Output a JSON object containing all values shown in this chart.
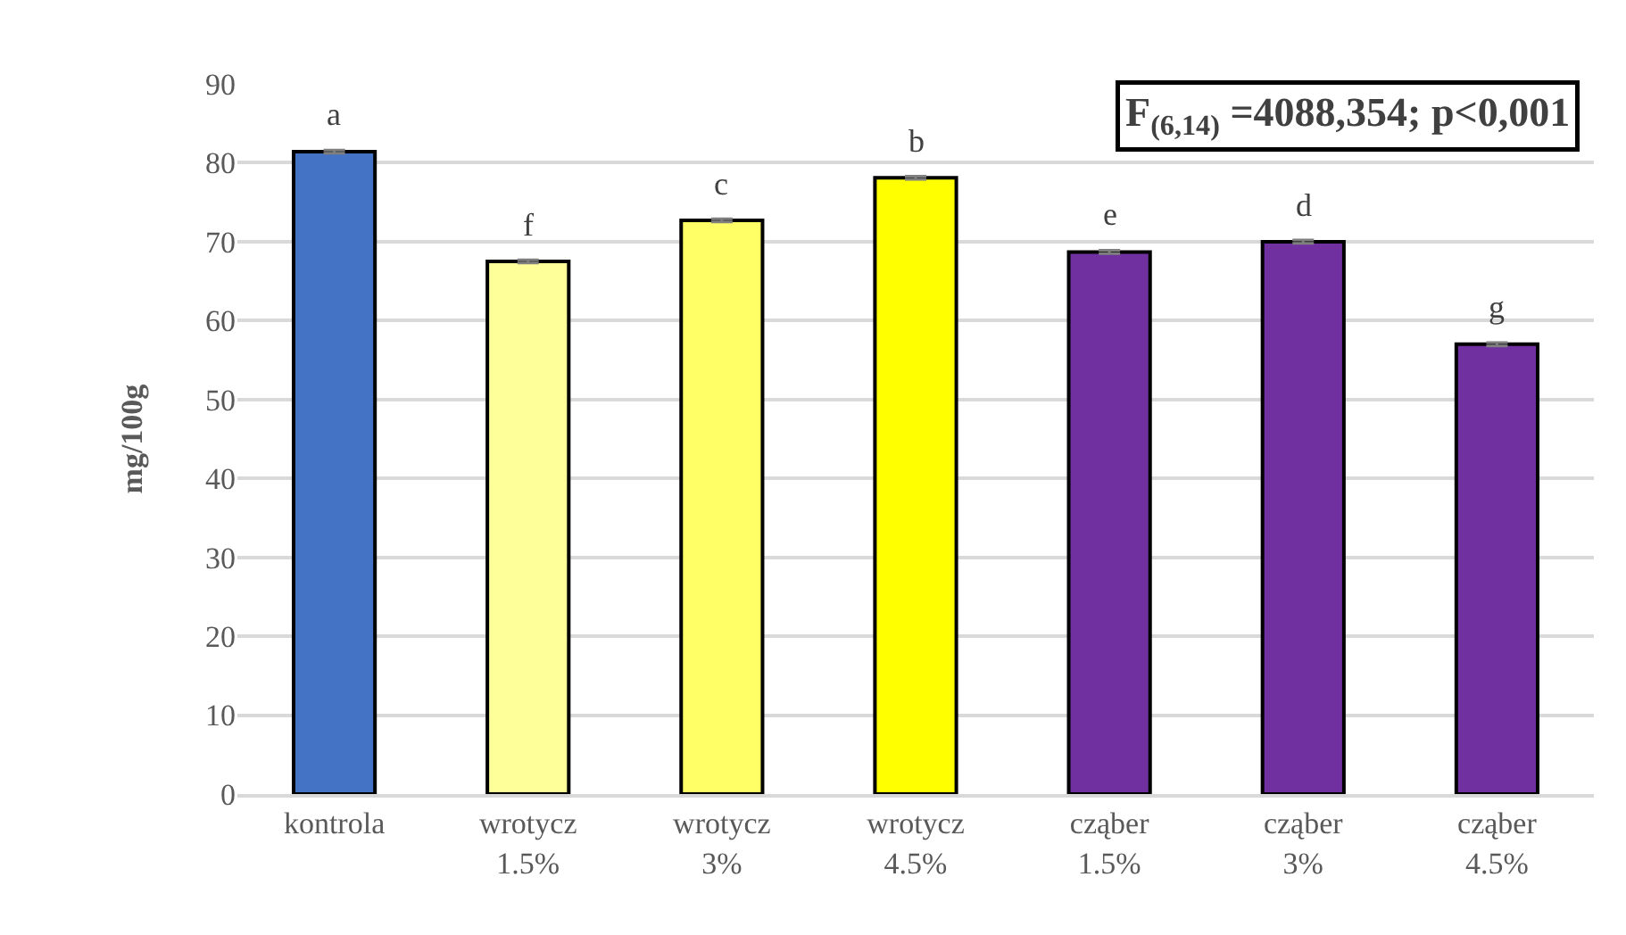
{
  "chart_data": {
    "type": "bar",
    "categories": [
      "kontrola",
      "wrotycz 1.5%",
      "wrotycz 3%",
      "wrotycz 4.5%",
      "cząber 1.5%",
      "cząber 3%",
      "cząber 4.5%"
    ],
    "values": [
      81.4,
      67.5,
      72.7,
      78.1,
      68.7,
      70.0,
      57.0
    ],
    "value_labels": [
      "a",
      "f",
      "c",
      "b",
      "e",
      "d",
      "g"
    ],
    "colors": [
      "#4472c4",
      "#ffff99",
      "#ffff66",
      "#ffff00",
      "#7030a0",
      "#7030a0",
      "#7030a0"
    ],
    "errors": [
      0.2,
      0.2,
      0.2,
      0.2,
      0.2,
      0.2,
      0.2
    ],
    "ylabel": "mg/100g",
    "ylim": [
      0,
      90
    ],
    "yticks": [
      0,
      10,
      20,
      30,
      40,
      50,
      60,
      70,
      80,
      90
    ],
    "grid": "y",
    "annotations": [
      "F$_{(6,14)}$ =4088,354; p<0,001"
    ]
  }
}
